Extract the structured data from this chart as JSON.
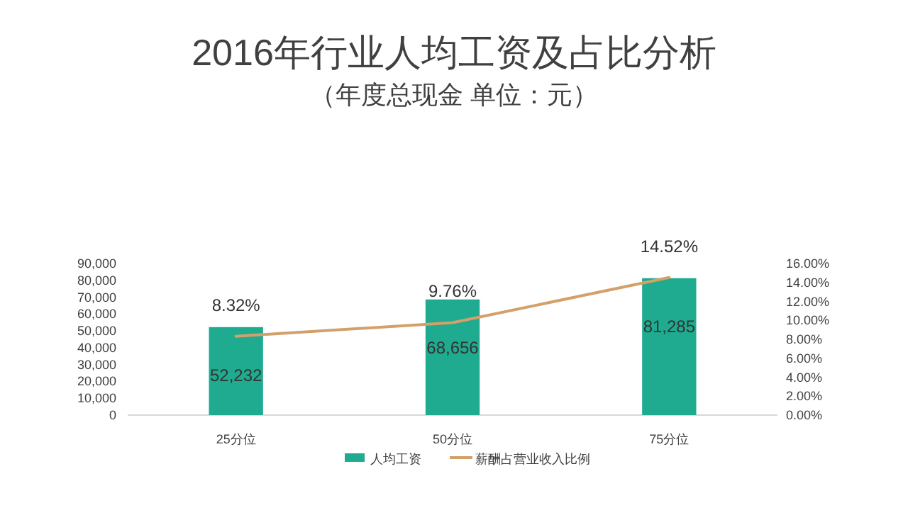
{
  "chart_data": {
    "type": "bar",
    "title": "2016年行业人均工资及占比分析",
    "subtitle": "（年度总现金 单位：元）",
    "categories": [
      "25分位",
      "50分位",
      "75分位"
    ],
    "series": [
      {
        "name": "人均工资",
        "color": "#1fab8f",
        "values": [
          52232,
          68656,
          81285
        ],
        "value_labels": [
          "52,232",
          "68,656",
          "81,285"
        ]
      },
      {
        "name": "薪酬占营业收入比例",
        "type": "line",
        "axis": "y2",
        "color": "#d4a06a",
        "values": [
          8.32,
          9.76,
          14.52
        ],
        "value_labels": [
          "8.32%",
          "9.76%",
          "14.52%"
        ]
      }
    ],
    "ylim": [
      0,
      90000
    ],
    "yticks": [
      0,
      {
        "value": 10000,
        "label": "10,000"
      },
      {
        "value": 20000,
        "label": "20,000"
      },
      {
        "value": 30000,
        "label": "30,000"
      },
      {
        "value": 40000,
        "label": "40,000"
      },
      {
        "value": 50000,
        "label": "50,000"
      },
      {
        "value": 60000,
        "label": "60,000"
      },
      {
        "value": 70000,
        "label": "70,000"
      },
      {
        "value": 80000,
        "label": "80,000"
      },
      {
        "value": 90000,
        "label": "90,000"
      }
    ],
    "y2lim": [
      0,
      16
    ],
    "y2ticks": [
      {
        "value": 0,
        "label": "0.00%"
      },
      {
        "value": 2,
        "label": "2.00%"
      },
      {
        "value": 4,
        "label": "4.00%"
      },
      {
        "value": 6,
        "label": "6.00%"
      },
      {
        "value": 8,
        "label": "8.00%"
      },
      {
        "value": 10,
        "label": "10.00%"
      },
      {
        "value": 12,
        "label": "12.00%"
      },
      {
        "value": 14,
        "label": "14.00%"
      },
      {
        "value": 16,
        "label": "16.00%"
      }
    ],
    "legend": "bottom",
    "grid": false
  }
}
